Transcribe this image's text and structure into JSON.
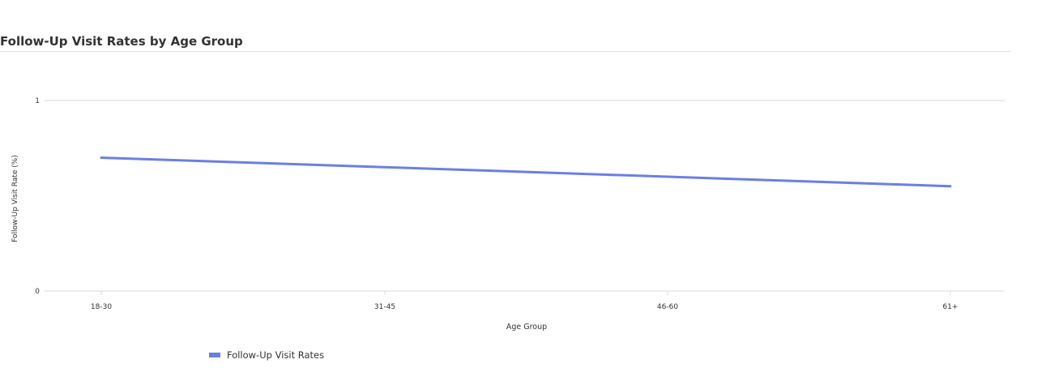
{
  "chart_data": {
    "type": "line",
    "title": "Follow-Up Visit Rates by Age Group",
    "xlabel": "Age Group",
    "ylabel": "Follow-Up Visit Rate (%)",
    "categories": [
      "18-30",
      "31-45",
      "46-60",
      "61+"
    ],
    "series": [
      {
        "name": "Follow-Up Visit Rates",
        "values": [
          0.7,
          0.65,
          0.6,
          0.55
        ],
        "color": "#6B7FE3"
      }
    ],
    "yticks": [
      "0",
      "1"
    ],
    "ylim": [
      0,
      1
    ],
    "grid": true,
    "legend_position": "bottom-left"
  }
}
